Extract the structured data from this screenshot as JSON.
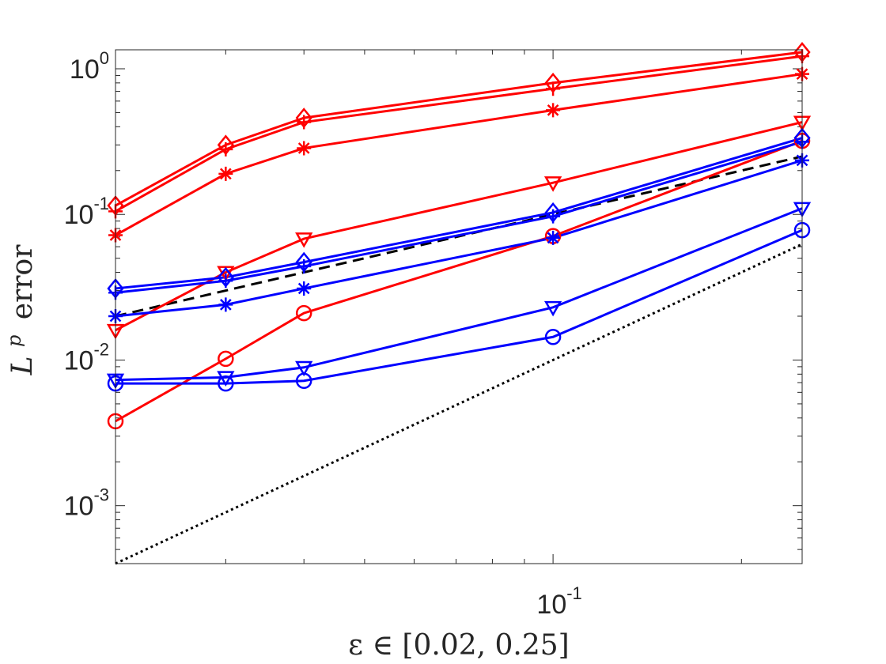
{
  "chart_data": {
    "type": "line",
    "xlabel": "ε ∈ [0.02, 0.25]",
    "ylabel_symbol": "L",
    "ylabel_superscript": "p",
    "ylabel_rest": "error",
    "xscale": "log",
    "yscale": "log",
    "xlim": [
      0.02,
      0.25
    ],
    "ylim": [
      0.0004,
      1.35
    ],
    "grid": false,
    "legend": "none",
    "x": [
      0.02,
      0.03,
      0.04,
      0.1,
      0.25
    ],
    "xticks": [
      {
        "base": "10",
        "exp": "-1",
        "value": 0.1
      }
    ],
    "yticks": [
      {
        "base": "10",
        "exp": "0",
        "value": 1
      },
      {
        "base": "10",
        "exp": "-1",
        "value": 0.1
      },
      {
        "base": "10",
        "exp": "-2",
        "value": 0.01
      },
      {
        "base": "10",
        "exp": "-3",
        "value": 0.001
      }
    ],
    "series": [
      {
        "color": "#ff0000",
        "marker": "diamond",
        "values": [
          0.115,
          0.3,
          0.46,
          0.8,
          1.3
        ]
      },
      {
        "color": "#ff0000",
        "marker": "plus",
        "values": [
          0.105,
          0.28,
          0.43,
          0.73,
          1.22
        ]
      },
      {
        "color": "#ff0000",
        "marker": "asterisk",
        "values": [
          0.072,
          0.19,
          0.285,
          0.52,
          0.92
        ]
      },
      {
        "color": "#ff0000",
        "marker": "triangle-down",
        "values": [
          0.016,
          0.04,
          0.068,
          0.165,
          0.43
        ]
      },
      {
        "color": "#ff0000",
        "marker": "circle",
        "values": [
          0.0038,
          0.0102,
          0.021,
          0.071,
          0.32
        ]
      },
      {
        "color": "#0000ff",
        "marker": "diamond",
        "values": [
          0.031,
          0.037,
          0.047,
          0.103,
          0.335
        ]
      },
      {
        "color": "#0000ff",
        "marker": "plus",
        "values": [
          0.029,
          0.035,
          0.044,
          0.097,
          0.315
        ]
      },
      {
        "color": "#0000ff",
        "marker": "asterisk",
        "values": [
          0.02,
          0.024,
          0.031,
          0.069,
          0.235
        ]
      },
      {
        "color": "#0000ff",
        "marker": "triangle-down",
        "values": [
          0.0073,
          0.0076,
          0.0089,
          0.023,
          0.11
        ]
      },
      {
        "color": "#0000ff",
        "marker": "circle",
        "values": [
          0.0069,
          0.0069,
          0.0072,
          0.0144,
          0.078
        ]
      }
    ],
    "reference_lines": [
      {
        "style": "dashed",
        "color": "#000000",
        "x": [
          0.02,
          0.25
        ],
        "y": [
          0.02,
          0.25
        ]
      },
      {
        "style": "dotted",
        "color": "#000000",
        "x": [
          0.02,
          0.25
        ],
        "y": [
          0.0004,
          0.0625
        ]
      }
    ]
  }
}
